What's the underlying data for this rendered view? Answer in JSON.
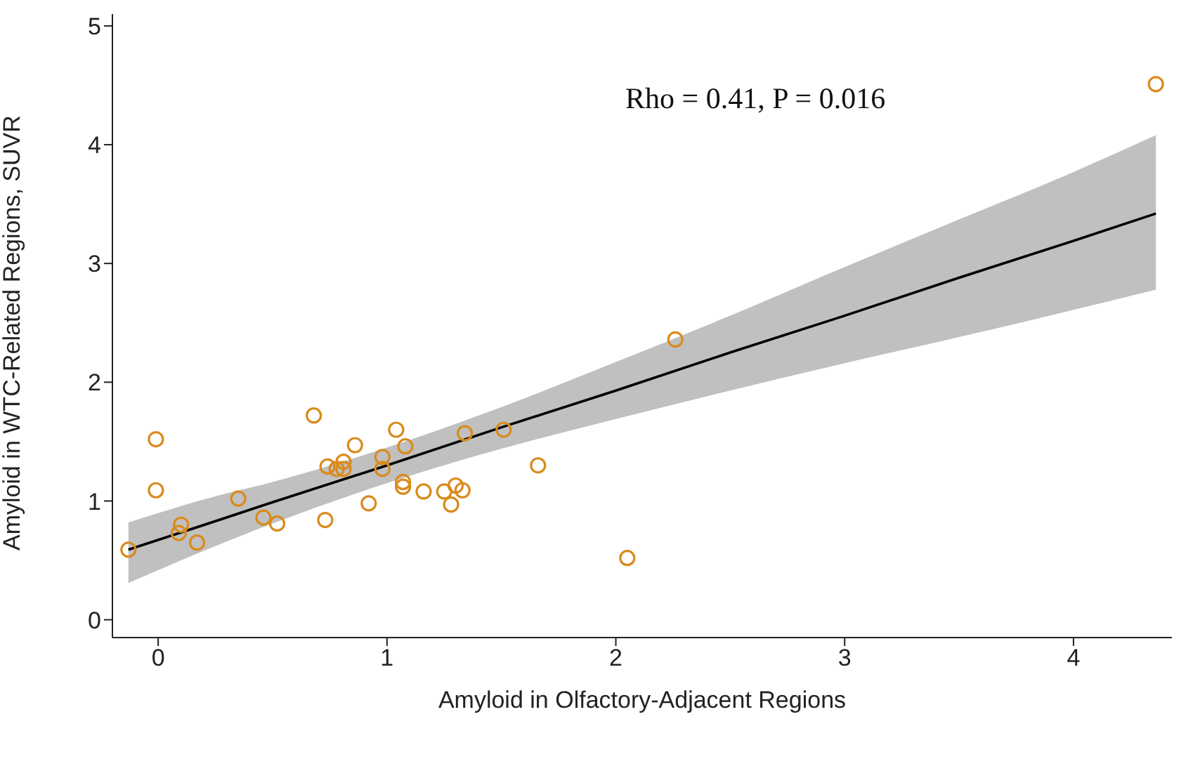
{
  "chart_data": {
    "type": "scatter",
    "xlabel": "Amyloid in Olfactory-Adjacent Regions",
    "ylabel": "Amyloid in WTC-Related Regions, SUVR",
    "annotations": [
      "Rho = 0.41, P = 0.016"
    ],
    "xlim": [
      -0.2,
      4.43
    ],
    "xticks": [
      0,
      1,
      2,
      3,
      4
    ],
    "ylim": [
      -0.15,
      5.1
    ],
    "yticks": [
      0,
      1,
      2,
      3,
      4,
      5
    ],
    "grid": false,
    "legend": false,
    "marker": "circle",
    "series": [
      {
        "color": "#d98b1c",
        "x": [
          -0.13,
          -0.01,
          -0.01,
          0.09,
          0.1,
          0.17,
          0.35,
          0.46,
          0.52,
          0.68,
          0.73,
          0.74,
          0.78,
          0.81,
          0.81,
          0.86,
          0.92,
          0.98,
          0.98,
          1.04,
          1.08,
          1.07,
          1.07,
          1.16,
          1.25,
          1.28,
          1.3,
          1.33,
          1.34,
          1.51,
          1.66,
          2.05,
          2.26,
          4.36
        ],
        "values": [
          0.59,
          1.52,
          1.09,
          0.73,
          0.8,
          0.65,
          1.02,
          0.86,
          0.81,
          1.72,
          0.84,
          1.29,
          1.27,
          1.33,
          1.27,
          1.47,
          0.98,
          1.37,
          1.27,
          1.6,
          1.46,
          1.16,
          1.12,
          1.08,
          1.08,
          0.97,
          1.13,
          1.09,
          1.57,
          1.6,
          1.3,
          0.52,
          2.36,
          4.51
        ]
      },
      {
        "type": "line",
        "color": "#000000",
        "line_style": "solid",
        "marker": "none",
        "x": [
          -0.13,
          0.25,
          0.5,
          1,
          1.5,
          2,
          2.5,
          3,
          3.5,
          4,
          4.36
        ],
        "values": [
          0.59,
          0.83,
          0.99,
          1.3,
          1.62,
          1.93,
          2.25,
          2.56,
          2.88,
          3.19,
          3.42
        ],
        "lower": [
          0.31,
          0.62,
          0.81,
          1.15,
          1.44,
          1.69,
          1.93,
          2.16,
          2.38,
          2.61,
          2.78
        ],
        "upper": [
          0.82,
          1.04,
          1.16,
          1.45,
          1.79,
          2.17,
          2.56,
          2.97,
          3.37,
          3.77,
          4.08
        ]
      }
    ]
  }
}
